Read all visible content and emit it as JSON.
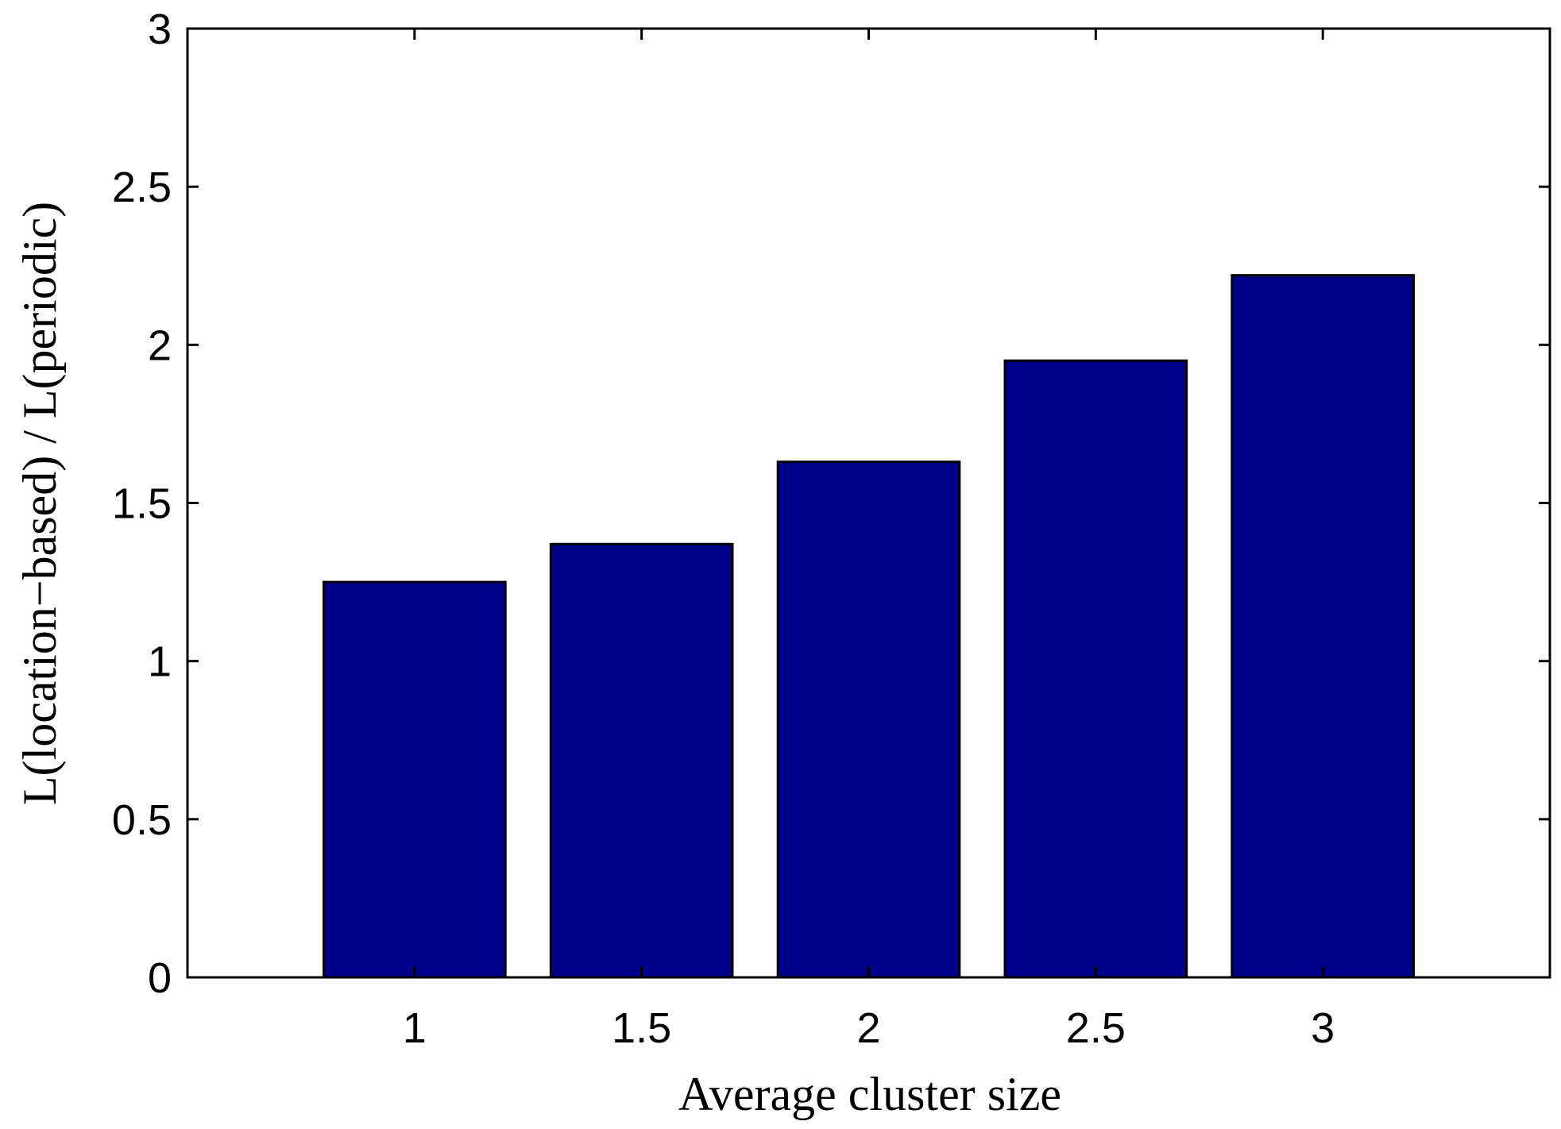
{
  "chart_data": {
    "type": "bar",
    "title": "",
    "xlabel": "Average cluster size",
    "ylabel": "L(location−based) / L(periodic)",
    "categories": [
      "1",
      "1.5",
      "2",
      "2.5",
      "3"
    ],
    "values": [
      1.25,
      1.37,
      1.63,
      1.95,
      2.22
    ],
    "xlim": [
      0.5,
      3.5
    ],
    "ylim": [
      0,
      3
    ],
    "yticks": [
      "0",
      "0.5",
      "1",
      "1.5",
      "2",
      "2.5",
      "3"
    ],
    "grid": false,
    "legend": "none",
    "bar_color": "#00008B",
    "edge_color": "#000000"
  }
}
